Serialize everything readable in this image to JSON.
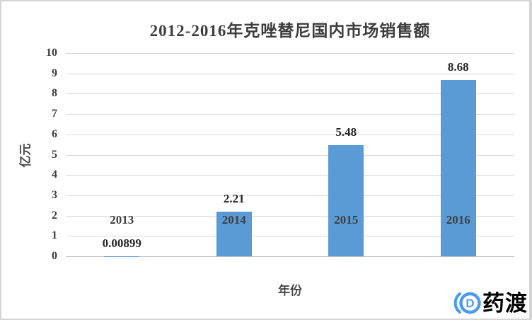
{
  "chart_data": {
    "type": "bar",
    "title": "2012-2016年克唑替尼国内市场销售额",
    "categories": [
      "2013",
      "2014",
      "2015",
      "2016"
    ],
    "values": [
      0.00899,
      2.21,
      5.48,
      8.68
    ],
    "data_labels": [
      "0.00899",
      "2.21",
      "5.48",
      "8.68"
    ],
    "xlabel": "年份",
    "ylabel": "亿元",
    "ylim": [
      0,
      10
    ],
    "ytick_step": 1,
    "grid": true,
    "legend": "none",
    "bar_color": "#5b9bd5",
    "gridline_color": "#d9d9d9",
    "axis_line_color": "#bfbfbf"
  },
  "watermark": {
    "brand_text": "药渡",
    "brand_color": "#4d9bea"
  }
}
